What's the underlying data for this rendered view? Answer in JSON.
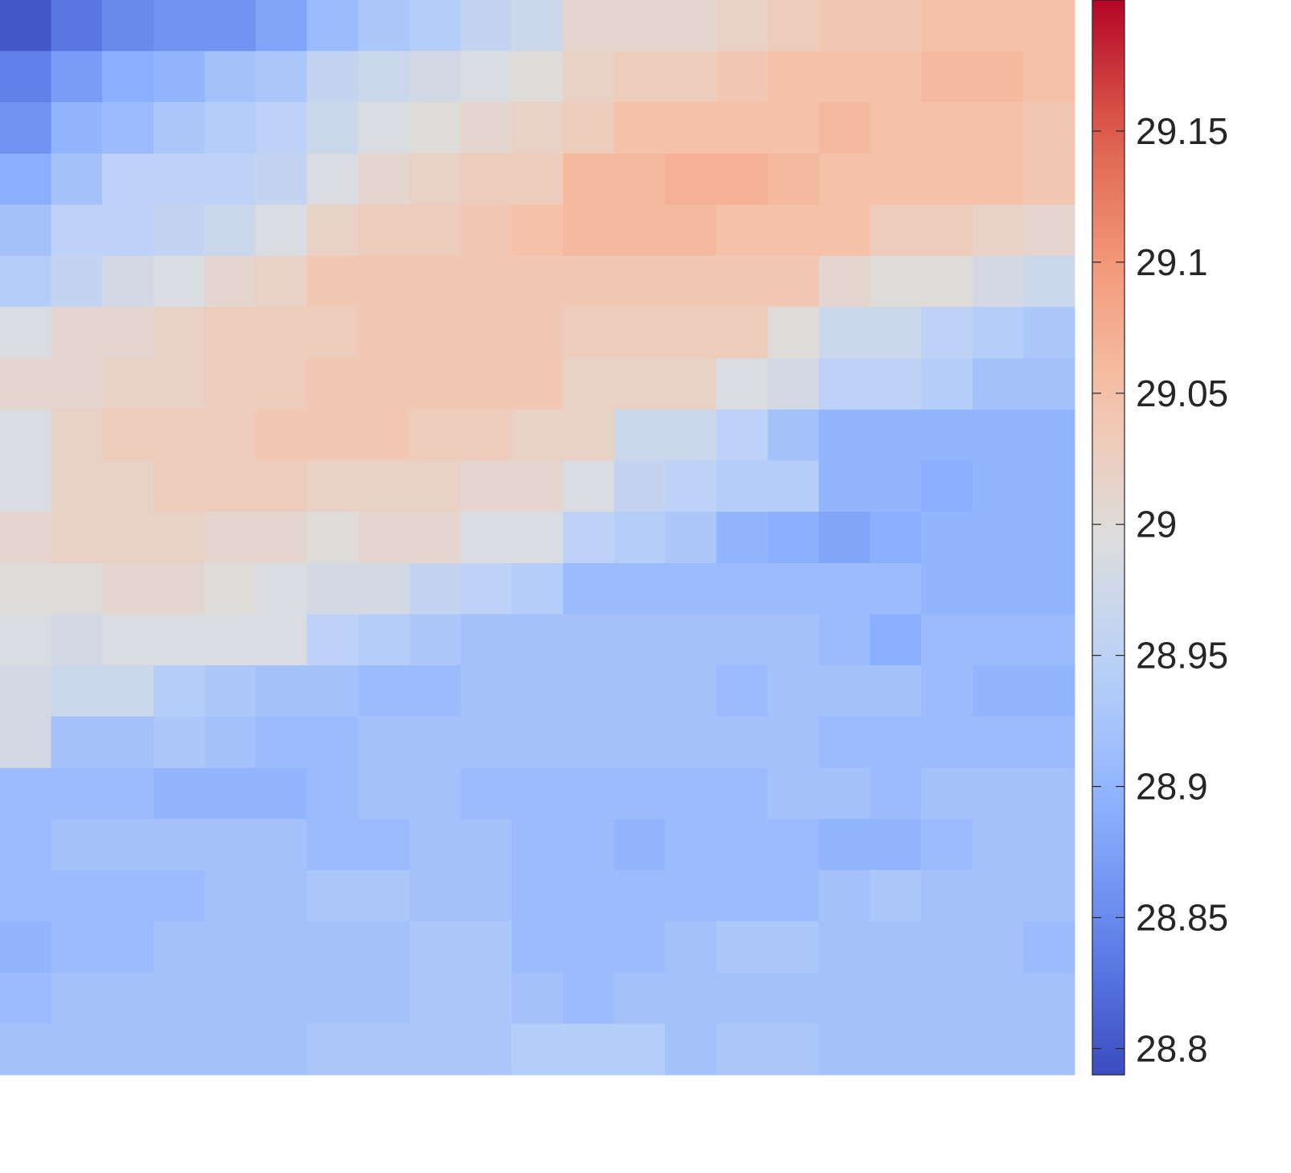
{
  "chart_data": {
    "type": "heatmap",
    "title": "",
    "xlabel": "",
    "ylabel": "",
    "rows": 21,
    "cols": 21,
    "colormap": "coolwarm",
    "colorbar": {
      "min": 28.79,
      "max": 29.2,
      "ticks": [
        28.8,
        28.85,
        28.9,
        28.95,
        29,
        29.05,
        29.1,
        29.15
      ],
      "tick_labels": [
        "28.8",
        "28.85",
        "28.9",
        "28.95",
        "29",
        "29.05",
        "29.1",
        "29.15"
      ],
      "placement": "right"
    },
    "values": [
      [
        28.8,
        28.83,
        28.85,
        28.86,
        28.86,
        28.88,
        28.91,
        28.93,
        28.94,
        28.96,
        28.97,
        29.01,
        29.01,
        29.01,
        29.02,
        29.03,
        29.04,
        29.04,
        29.05,
        29.05,
        29.05
      ],
      [
        28.84,
        28.87,
        28.89,
        28.9,
        28.92,
        28.93,
        28.96,
        28.97,
        28.98,
        28.99,
        29.0,
        29.02,
        29.03,
        29.03,
        29.04,
        29.05,
        29.05,
        29.05,
        29.06,
        29.06,
        29.05
      ],
      [
        28.86,
        28.9,
        28.91,
        28.93,
        28.94,
        28.95,
        28.97,
        28.99,
        29.0,
        29.01,
        29.02,
        29.03,
        29.05,
        29.05,
        29.05,
        29.05,
        29.06,
        29.05,
        29.05,
        29.05,
        29.04
      ],
      [
        28.89,
        28.92,
        28.95,
        28.95,
        28.95,
        28.96,
        28.99,
        29.01,
        29.02,
        29.03,
        29.03,
        29.06,
        29.06,
        29.07,
        29.07,
        29.06,
        29.05,
        29.05,
        29.05,
        29.05,
        29.04
      ],
      [
        28.92,
        28.95,
        28.95,
        28.96,
        28.97,
        28.99,
        29.02,
        29.03,
        29.03,
        29.04,
        29.05,
        29.06,
        29.06,
        29.06,
        29.05,
        29.05,
        29.05,
        29.03,
        29.03,
        29.02,
        29.01
      ],
      [
        28.94,
        28.96,
        28.98,
        28.99,
        29.01,
        29.02,
        29.04,
        29.04,
        29.04,
        29.04,
        29.04,
        29.04,
        29.04,
        29.04,
        29.04,
        29.04,
        29.01,
        29.0,
        29.0,
        28.98,
        28.97
      ],
      [
        28.99,
        29.01,
        29.01,
        29.02,
        29.03,
        29.03,
        29.03,
        29.04,
        29.04,
        29.04,
        29.04,
        29.03,
        29.03,
        29.03,
        29.03,
        29.0,
        28.97,
        28.97,
        28.95,
        28.94,
        28.93
      ],
      [
        29.01,
        29.01,
        29.02,
        29.02,
        29.03,
        29.03,
        29.04,
        29.04,
        29.04,
        29.04,
        29.04,
        29.02,
        29.02,
        29.02,
        28.99,
        28.98,
        28.95,
        28.95,
        28.94,
        28.92,
        28.92
      ],
      [
        28.99,
        29.02,
        29.03,
        29.03,
        29.03,
        29.04,
        29.04,
        29.04,
        29.03,
        29.03,
        29.02,
        29.02,
        28.97,
        28.97,
        28.95,
        28.92,
        28.9,
        28.9,
        28.9,
        28.9,
        28.9
      ],
      [
        28.99,
        29.02,
        29.02,
        29.03,
        29.03,
        29.03,
        29.02,
        29.02,
        29.02,
        29.01,
        29.01,
        28.99,
        28.96,
        28.95,
        28.94,
        28.94,
        28.9,
        28.9,
        28.89,
        28.9,
        28.9
      ],
      [
        29.01,
        29.02,
        29.02,
        29.02,
        29.01,
        29.01,
        29.0,
        29.01,
        29.01,
        28.99,
        28.99,
        28.95,
        28.94,
        28.93,
        28.9,
        28.89,
        28.88,
        28.89,
        28.9,
        28.9,
        28.9
      ],
      [
        29.0,
        29.0,
        29.01,
        29.01,
        29.0,
        28.99,
        28.98,
        28.98,
        28.96,
        28.95,
        28.94,
        28.91,
        28.91,
        28.91,
        28.91,
        28.91,
        28.91,
        28.91,
        28.9,
        28.9,
        28.9
      ],
      [
        28.99,
        28.98,
        28.99,
        28.99,
        28.99,
        28.99,
        28.95,
        28.94,
        28.93,
        28.92,
        28.92,
        28.92,
        28.92,
        28.92,
        28.92,
        28.92,
        28.91,
        28.89,
        28.91,
        28.91,
        28.91
      ],
      [
        28.98,
        28.97,
        28.97,
        28.94,
        28.93,
        28.92,
        28.92,
        28.91,
        28.91,
        28.92,
        28.92,
        28.92,
        28.92,
        28.92,
        28.91,
        28.92,
        28.92,
        28.92,
        28.91,
        28.9,
        28.9
      ],
      [
        28.98,
        28.92,
        28.92,
        28.93,
        28.92,
        28.91,
        28.91,
        28.92,
        28.92,
        28.92,
        28.92,
        28.92,
        28.92,
        28.92,
        28.92,
        28.92,
        28.91,
        28.91,
        28.91,
        28.91,
        28.91
      ],
      [
        28.91,
        28.91,
        28.91,
        28.9,
        28.9,
        28.9,
        28.91,
        28.92,
        28.92,
        28.91,
        28.91,
        28.91,
        28.91,
        28.91,
        28.91,
        28.92,
        28.92,
        28.91,
        28.92,
        28.92,
        28.92
      ],
      [
        28.91,
        28.92,
        28.92,
        28.92,
        28.92,
        28.92,
        28.91,
        28.91,
        28.92,
        28.92,
        28.91,
        28.91,
        28.9,
        28.91,
        28.91,
        28.91,
        28.9,
        28.9,
        28.91,
        28.92,
        28.92
      ],
      [
        28.91,
        28.91,
        28.91,
        28.91,
        28.92,
        28.92,
        28.93,
        28.93,
        28.92,
        28.92,
        28.91,
        28.91,
        28.91,
        28.91,
        28.91,
        28.91,
        28.92,
        28.93,
        28.92,
        28.92,
        28.92
      ],
      [
        28.9,
        28.91,
        28.91,
        28.92,
        28.92,
        28.92,
        28.92,
        28.92,
        28.93,
        28.93,
        28.91,
        28.91,
        28.91,
        28.92,
        28.93,
        28.93,
        28.92,
        28.92,
        28.92,
        28.92,
        28.91
      ],
      [
        28.91,
        28.92,
        28.92,
        28.92,
        28.92,
        28.92,
        28.92,
        28.92,
        28.93,
        28.93,
        28.92,
        28.91,
        28.92,
        28.92,
        28.92,
        28.92,
        28.92,
        28.92,
        28.92,
        28.92,
        28.92
      ],
      [
        28.92,
        28.92,
        28.92,
        28.92,
        28.92,
        28.92,
        28.93,
        28.93,
        28.93,
        28.93,
        28.94,
        28.94,
        28.94,
        28.92,
        28.93,
        28.93,
        28.92,
        28.92,
        28.92,
        28.92,
        28.92
      ]
    ]
  }
}
